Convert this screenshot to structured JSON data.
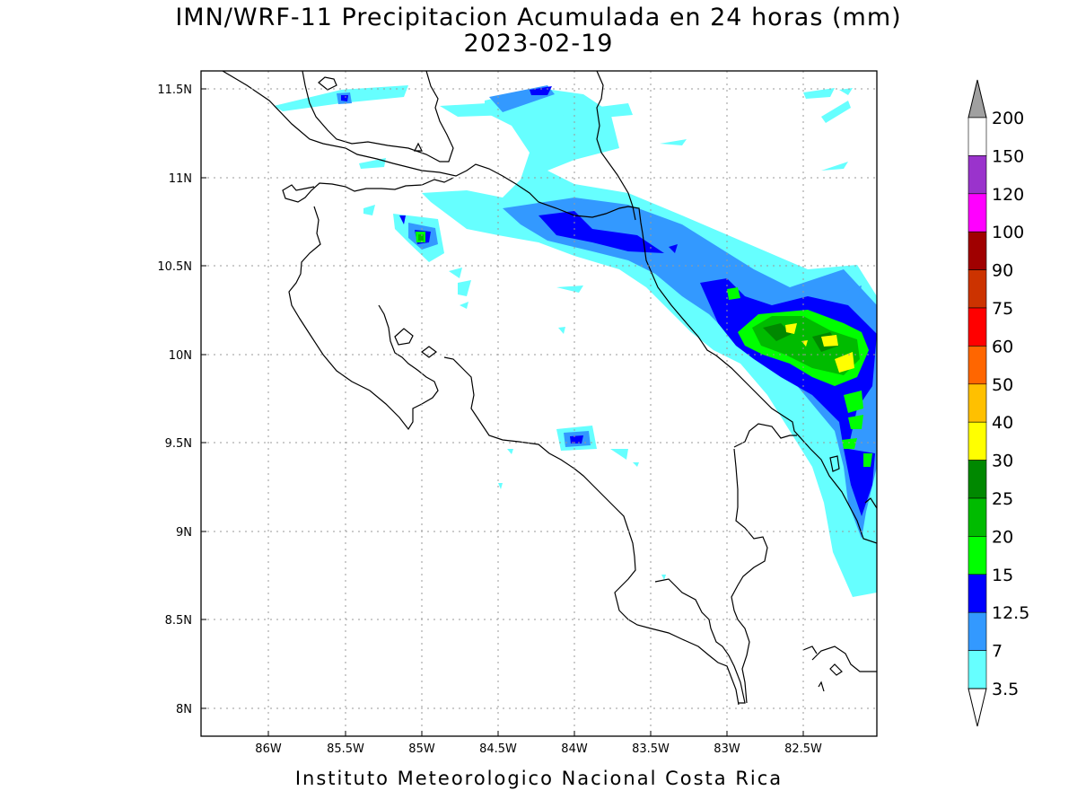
{
  "title": "IMN/WRF-11 Precipitacion Acumulada en 24 horas (mm)",
  "date": "2023-02-19",
  "credit": "Instituto Meteorologico Nacional Costa Rica",
  "axes": {
    "lon_ticks": [
      "86W",
      "85.5W",
      "85W",
      "84.5W",
      "84W",
      "83.5W",
      "83W",
      "82.5W"
    ],
    "lat_ticks": [
      "11.5N",
      "11N",
      "10.5N",
      "10N",
      "9.5N",
      "9N",
      "8.5N",
      "8N"
    ]
  },
  "colorbar": {
    "labels": [
      "200",
      "150",
      "120",
      "100",
      "90",
      "75",
      "60",
      "50",
      "40",
      "30",
      "25",
      "20",
      "15",
      "12.5",
      "7",
      "3.5"
    ],
    "colors": [
      "#ffffff",
      "#9a33cc",
      "#ff00ff",
      "#a00000",
      "#cc3300",
      "#ff0000",
      "#ff6600",
      "#ffc000",
      "#ffff00",
      "#008800",
      "#00bb00",
      "#00ff00",
      "#0000ff",
      "#3399ff",
      "#66ffff"
    ],
    "top_arrow_color": "#a0a0a0",
    "bottom_arrow_color": "#ffffff"
  }
}
